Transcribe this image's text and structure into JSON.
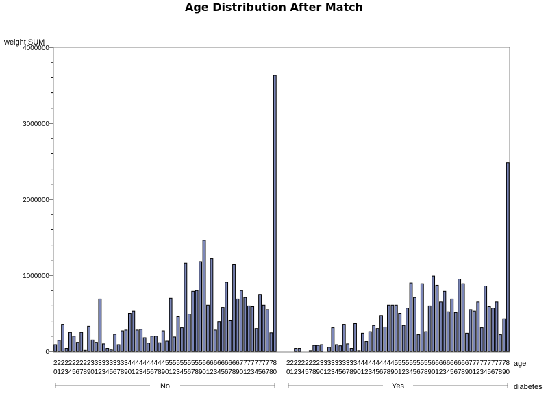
{
  "chart_data": {
    "type": "bar",
    "title": "Age Distribution After Match",
    "ylabel": "weight SUM",
    "xlabel": "age",
    "group_label": "diabetes",
    "ylim": [
      0,
      4000000
    ],
    "yticks": [
      0,
      1000000,
      2000000,
      3000000,
      4000000
    ],
    "ytick_labels": [
      "0",
      "1000000",
      "2000000",
      "3000000",
      "4000000"
    ],
    "groups": [
      {
        "name": "No",
        "bars": [
          {
            "age": "20",
            "value": 90000
          },
          {
            "age": "21",
            "value": 145000
          },
          {
            "age": "22",
            "value": 355000
          },
          {
            "age": "23",
            "value": 40000
          },
          {
            "age": "24",
            "value": 250000
          },
          {
            "age": "25",
            "value": 200000
          },
          {
            "age": "26",
            "value": 120000
          },
          {
            "age": "27",
            "value": 250000
          },
          {
            "age": "28",
            "value": 15000
          },
          {
            "age": "29",
            "value": 330000
          },
          {
            "age": "30",
            "value": 150000
          },
          {
            "age": "31",
            "value": 120000
          },
          {
            "age": "32",
            "value": 690000
          },
          {
            "age": "33",
            "value": 100000
          },
          {
            "age": "34",
            "value": 40000
          },
          {
            "age": "35",
            "value": 20000
          },
          {
            "age": "36",
            "value": 225000
          },
          {
            "age": "37",
            "value": 90000
          },
          {
            "age": "38",
            "value": 270000
          },
          {
            "age": "39",
            "value": 280000
          },
          {
            "age": "40",
            "value": 500000
          },
          {
            "age": "41",
            "value": 530000
          },
          {
            "age": "42",
            "value": 280000
          },
          {
            "age": "43",
            "value": 290000
          },
          {
            "age": "44",
            "value": 180000
          },
          {
            "age": "45",
            "value": 110000
          },
          {
            "age": "46",
            "value": 200000
          },
          {
            "age": "47",
            "value": 200000
          },
          {
            "age": "48",
            "value": 115000
          },
          {
            "age": "49",
            "value": 270000
          },
          {
            "age": "50",
            "value": 135000
          },
          {
            "age": "51",
            "value": 700000
          },
          {
            "age": "52",
            "value": 190000
          },
          {
            "age": "53",
            "value": 455000
          },
          {
            "age": "54",
            "value": 310000
          },
          {
            "age": "55",
            "value": 1160000
          },
          {
            "age": "56",
            "value": 490000
          },
          {
            "age": "57",
            "value": 790000
          },
          {
            "age": "58",
            "value": 800000
          },
          {
            "age": "59",
            "value": 1180000
          },
          {
            "age": "60",
            "value": 1460000
          },
          {
            "age": "61",
            "value": 610000
          },
          {
            "age": "62",
            "value": 1220000
          },
          {
            "age": "63",
            "value": 280000
          },
          {
            "age": "64",
            "value": 390000
          },
          {
            "age": "65",
            "value": 580000
          },
          {
            "age": "66",
            "value": 910000
          },
          {
            "age": "67",
            "value": 410000
          },
          {
            "age": "68",
            "value": 1140000
          },
          {
            "age": "69",
            "value": 690000
          },
          {
            "age": "70",
            "value": 800000
          },
          {
            "age": "71",
            "value": 710000
          },
          {
            "age": "72",
            "value": 600000
          },
          {
            "age": "73",
            "value": 590000
          },
          {
            "age": "74",
            "value": 300000
          },
          {
            "age": "75",
            "value": 750000
          },
          {
            "age": "76",
            "value": 610000
          },
          {
            "age": "77",
            "value": 550000
          },
          {
            "age": "78",
            "value": 245000
          },
          {
            "age": "80",
            "value": 3630000
          }
        ]
      },
      {
        "name": "Yes",
        "bars": [
          {
            "age": "20",
            "value": 0
          },
          {
            "age": "21",
            "value": 0
          },
          {
            "age": "22",
            "value": 40000
          },
          {
            "age": "23",
            "value": 40000
          },
          {
            "age": "24",
            "value": 0
          },
          {
            "age": "25",
            "value": 0
          },
          {
            "age": "27",
            "value": 10000
          },
          {
            "age": "28",
            "value": 80000
          },
          {
            "age": "29",
            "value": 80000
          },
          {
            "age": "30",
            "value": 90000
          },
          {
            "age": "31",
            "value": 0
          },
          {
            "age": "32",
            "value": 55000
          },
          {
            "age": "33",
            "value": 310000
          },
          {
            "age": "34",
            "value": 90000
          },
          {
            "age": "35",
            "value": 75000
          },
          {
            "age": "36",
            "value": 355000
          },
          {
            "age": "37",
            "value": 100000
          },
          {
            "age": "38",
            "value": 40000
          },
          {
            "age": "39",
            "value": 365000
          },
          {
            "age": "40",
            "value": 10000
          },
          {
            "age": "41",
            "value": 240000
          },
          {
            "age": "42",
            "value": 130000
          },
          {
            "age": "43",
            "value": 260000
          },
          {
            "age": "44",
            "value": 340000
          },
          {
            "age": "45",
            "value": 300000
          },
          {
            "age": "46",
            "value": 470000
          },
          {
            "age": "47",
            "value": 320000
          },
          {
            "age": "48",
            "value": 610000
          },
          {
            "age": "49",
            "value": 610000
          },
          {
            "age": "50",
            "value": 610000
          },
          {
            "age": "51",
            "value": 500000
          },
          {
            "age": "52",
            "value": 340000
          },
          {
            "age": "53",
            "value": 570000
          },
          {
            "age": "54",
            "value": 900000
          },
          {
            "age": "55",
            "value": 710000
          },
          {
            "age": "56",
            "value": 220000
          },
          {
            "age": "57",
            "value": 890000
          },
          {
            "age": "58",
            "value": 260000
          },
          {
            "age": "59",
            "value": 600000
          },
          {
            "age": "60",
            "value": 990000
          },
          {
            "age": "61",
            "value": 870000
          },
          {
            "age": "62",
            "value": 650000
          },
          {
            "age": "63",
            "value": 790000
          },
          {
            "age": "64",
            "value": 520000
          },
          {
            "age": "65",
            "value": 690000
          },
          {
            "age": "66",
            "value": 510000
          },
          {
            "age": "67",
            "value": 950000
          },
          {
            "age": "68",
            "value": 890000
          },
          {
            "age": "69",
            "value": 240000
          },
          {
            "age": "70",
            "value": 550000
          },
          {
            "age": "71",
            "value": 530000
          },
          {
            "age": "72",
            "value": 650000
          },
          {
            "age": "73",
            "value": 310000
          },
          {
            "age": "74",
            "value": 860000
          },
          {
            "age": "75",
            "value": 590000
          },
          {
            "age": "76",
            "value": 570000
          },
          {
            "age": "77",
            "value": 650000
          },
          {
            "age": "78",
            "value": 220000
          },
          {
            "age": "79",
            "value": 430000
          },
          {
            "age": "80",
            "value": 2480000
          }
        ]
      }
    ],
    "bar_color": "#7b86b8",
    "bar_edge_color": "#000000",
    "grid": false
  }
}
